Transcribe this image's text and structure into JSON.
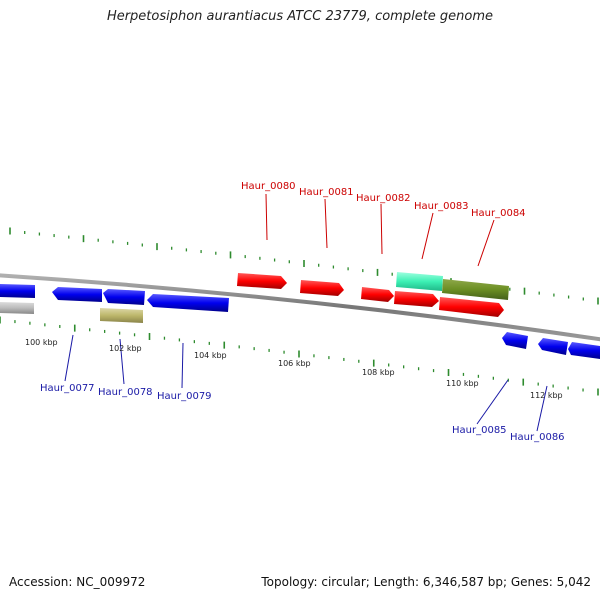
{
  "title": "Herpetosiphon aurantiacus ATCC 23779, complete genome",
  "accession_text": "Accession: NC_009972",
  "info_text": "Topology: circular; Length: 6,346,587 bp; Genes: 5,042",
  "colors": {
    "backbone": "#8a8a8a",
    "tick": "#2e8b2e",
    "top_label": "#cc0000",
    "bottom_label": "#1a1aa6"
  },
  "scale_labels": [
    {
      "kbp": 100,
      "text": "100 kbp"
    },
    {
      "kbp": 102,
      "text": "102 kbp"
    },
    {
      "kbp": 104,
      "text": "104 kbp"
    },
    {
      "kbp": 106,
      "text": "106 kbp"
    },
    {
      "kbp": 108,
      "text": "108 kbp"
    },
    {
      "kbp": 110,
      "text": "110 kbp"
    },
    {
      "kbp": 112,
      "text": "112 kbp"
    }
  ],
  "genes_top": [
    {
      "label": "Haur_0080",
      "color": "red"
    },
    {
      "label": "Haur_0081",
      "color": "red"
    },
    {
      "label": "Haur_0082",
      "color": "red"
    },
    {
      "label": "Haur_0083",
      "color": "aquamarine"
    },
    {
      "label": "Haur_0084",
      "color": "olive"
    }
  ],
  "genes_bottom": [
    {
      "label": "Haur_0077",
      "color": "blue"
    },
    {
      "label": "Haur_0078",
      "color": "khaki"
    },
    {
      "label": "Haur_0079",
      "color": "blue"
    },
    {
      "label": "Haur_0085",
      "color": "blue"
    },
    {
      "label": "Haur_0086",
      "color": "blue"
    }
  ]
}
